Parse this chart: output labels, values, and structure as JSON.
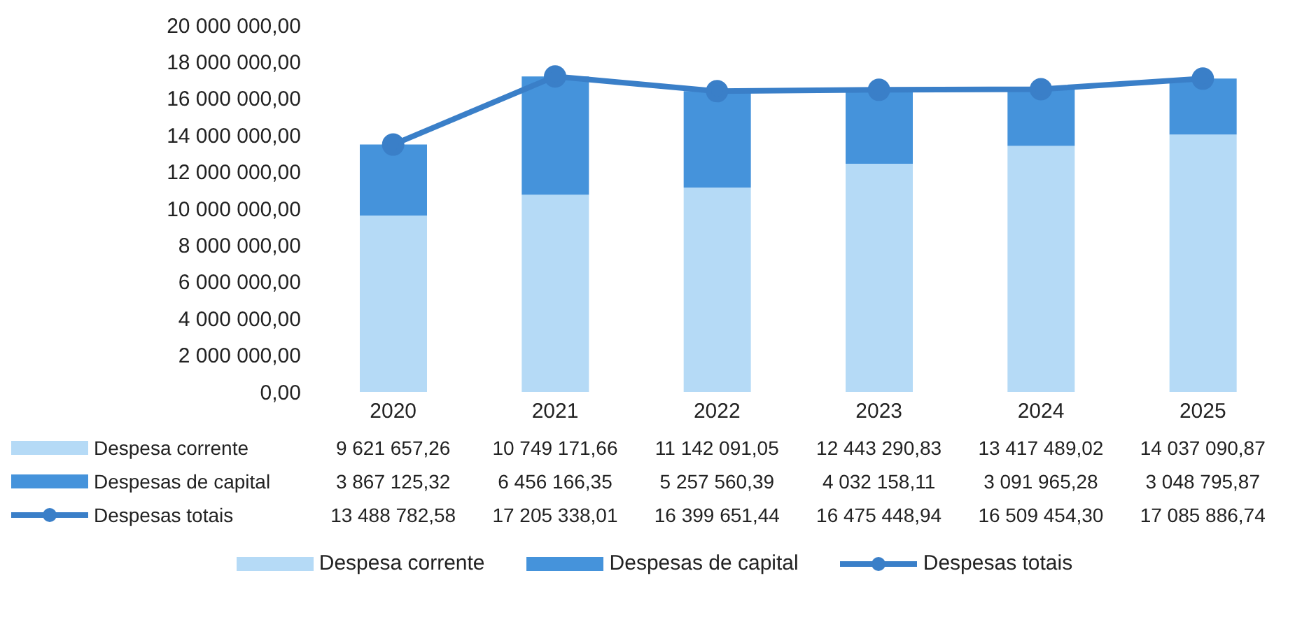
{
  "chart_data": {
    "type": "bar",
    "stacked": true,
    "categories": [
      "2020",
      "2021",
      "2022",
      "2023",
      "2024",
      "2025"
    ],
    "series": [
      {
        "name": "Despesa corrente",
        "color": "#b5daf6",
        "values": [
          9621657.26,
          10749171.66,
          11142091.05,
          12443290.83,
          13417489.02,
          14037090.87
        ],
        "value_labels": [
          "9 621 657,26",
          "10 749 171,66",
          "11 142 091,05",
          "12 443 290,83",
          "13 417 489,02",
          "14 037 090,87"
        ]
      },
      {
        "name": "Despesas de capital",
        "color": "#4593db",
        "values": [
          3867125.32,
          6456166.35,
          5257560.39,
          4032158.11,
          3091965.28,
          3048795.87
        ],
        "value_labels": [
          "3 867 125,32",
          "6 456 166,35",
          "5 257 560,39",
          "4 032 158,11",
          "3 091 965,28",
          "3 048 795,87"
        ]
      },
      {
        "name": "Despesas totais",
        "type": "line",
        "color": "#3a7fc8",
        "values": [
          13488782.58,
          17205338.01,
          16399651.44,
          16475448.94,
          16509454.3,
          17085886.74
        ],
        "value_labels": [
          "13 488 782,58",
          "17 205 338,01",
          "16 399 651,44",
          "16 475 448,94",
          "16 509 454,30",
          "17 085 886,74"
        ]
      }
    ],
    "ylim": [
      0,
      20000000
    ],
    "yticks": [
      {
        "value": 0,
        "label": "0,00"
      },
      {
        "value": 2000000,
        "label": "2 000 000,00"
      },
      {
        "value": 4000000,
        "label": "4 000 000,00"
      },
      {
        "value": 6000000,
        "label": "6 000 000,00"
      },
      {
        "value": 8000000,
        "label": "8 000 000,00"
      },
      {
        "value": 10000000,
        "label": "10 000 000,00"
      },
      {
        "value": 12000000,
        "label": "12 000 000,00"
      },
      {
        "value": 14000000,
        "label": "14 000 000,00"
      },
      {
        "value": 16000000,
        "label": "16 000 000,00"
      },
      {
        "value": 18000000,
        "label": "18 000 000,00"
      },
      {
        "value": 20000000,
        "label": "20 000 000,00"
      }
    ],
    "grid": false,
    "legend": "bottom",
    "marker": "circle",
    "line_style": "solid"
  }
}
